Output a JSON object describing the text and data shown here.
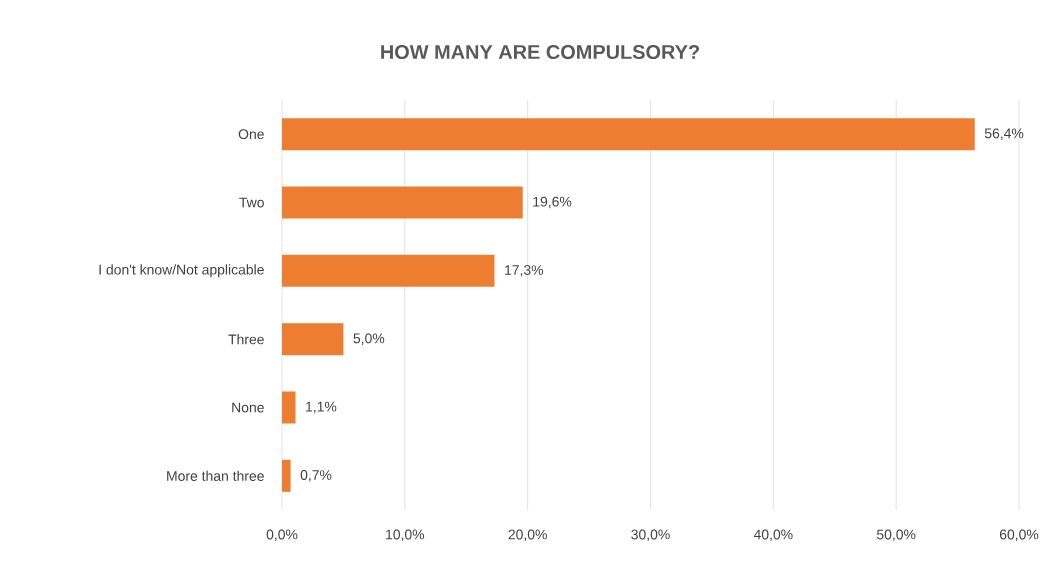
{
  "chart_data": {
    "type": "bar",
    "orientation": "horizontal",
    "title": "HOW MANY ARE COMPULSORY?",
    "categories": [
      "One",
      "Two",
      "I don't know/Not applicable",
      "Three",
      "None",
      "More than three"
    ],
    "values": [
      56.4,
      19.6,
      17.3,
      5.0,
      1.1,
      0.7
    ],
    "value_labels": [
      "56,4%",
      "19,6%",
      "17,3%",
      "5,0%",
      "1,1%",
      "0,7%"
    ],
    "color": "#ed7d31",
    "xlim": [
      0,
      60
    ],
    "xticks": [
      {
        "value": 0,
        "label": "0,0%"
      },
      {
        "value": 10,
        "label": "10,0%"
      },
      {
        "value": 20,
        "label": "20,0%"
      },
      {
        "value": 30,
        "label": "30,0%"
      },
      {
        "value": 40,
        "label": "40,0%"
      },
      {
        "value": 50,
        "label": "50,0%"
      },
      {
        "value": 60,
        "label": "60,0%"
      }
    ],
    "grid": "x"
  }
}
